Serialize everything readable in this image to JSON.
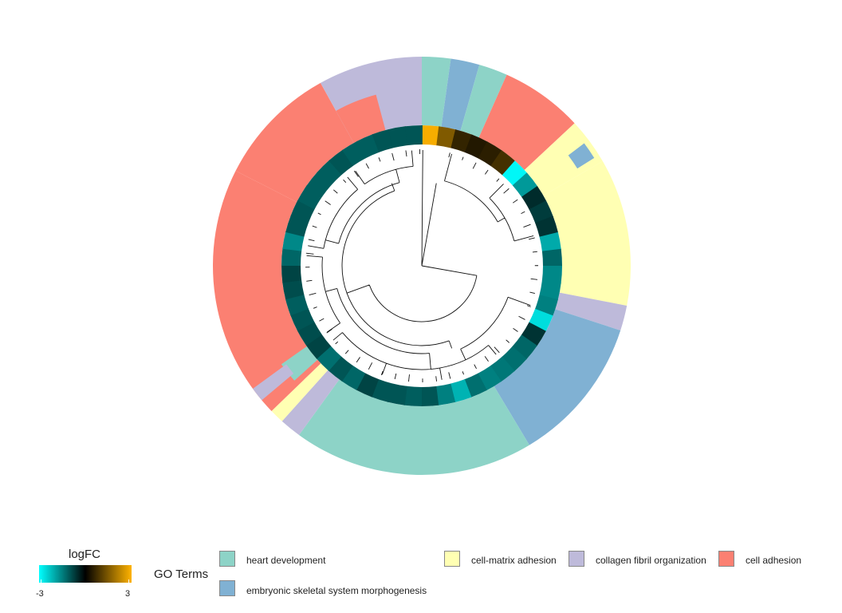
{
  "chart_data": {
    "type": "circular-heatmap",
    "colorbar": {
      "title": "logFC",
      "min": -3,
      "max": 3,
      "min_label": "-3",
      "max_label": "3",
      "colors": [
        "#00FFFF",
        "#000000",
        "#FFB300"
      ]
    },
    "legend": {
      "title": "GO Terms",
      "items": [
        {
          "label": "heart development",
          "color": "#8DD3C7"
        },
        {
          "label": "embryonic skeletal system morphogenesis",
          "color": "#80B1D3"
        },
        {
          "label": "cell-matrix adhesion",
          "color": "#FFFFB3"
        },
        {
          "label": "collagen fibril organization",
          "color": "#BEBADA"
        },
        {
          "label": "cell adhesion",
          "color": "#FB8072"
        }
      ]
    },
    "outer_ring_sequence_clockwise": [
      "heart development",
      "embryonic skeletal system morphogenesis",
      "heart development",
      "cell adhesion",
      "cell-matrix adhesion",
      "embryonic skeletal system morphogenesis",
      "cell-matrix adhesion",
      "collagen fibril organization",
      "embryonic skeletal system morphogenesis",
      "heart development",
      "collagen fibril organization",
      "cell-matrix adhesion",
      "heart development",
      "cell adhesion",
      "collagen fibril organization"
    ],
    "logFC_values_clockwise": [
      2.9,
      1.5,
      0.6,
      0.4,
      0.5,
      0.8,
      -2.9,
      -1.8,
      -0.5,
      -0.7,
      -0.6,
      -2.0,
      -1.2,
      -1.6,
      -1.6,
      -1.5,
      -2.6,
      -0.6,
      -1.2,
      -1.3,
      -1.4,
      -1.5,
      -1.3,
      -2.1,
      -1.5,
      -1.0,
      -1.1,
      -1.0,
      -1.0,
      -0.8,
      -1.2,
      -1.0,
      -1.3,
      -0.8,
      -0.9,
      -1.0,
      -1.1,
      -0.9,
      -0.8,
      -1.2,
      -1.6,
      -1.0,
      -1.0,
      -1.1,
      -1.1,
      -1.1,
      -1.0,
      -1.1,
      -1.1,
      -1.0,
      -1.0,
      -1.0
    ]
  }
}
